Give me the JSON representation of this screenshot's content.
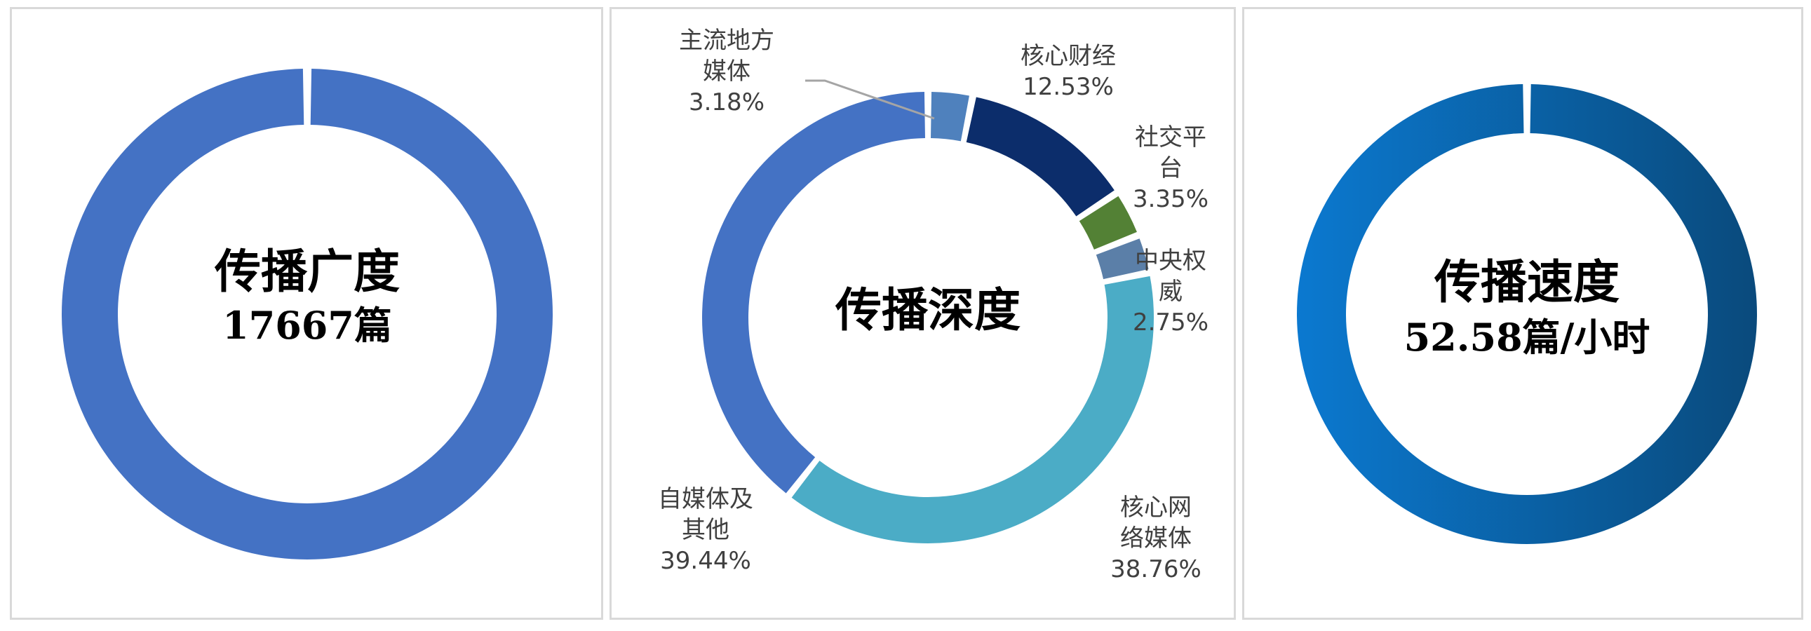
{
  "colors": {
    "breadth_ring": "#4472C4",
    "speed_ring_start": "#0b79d0",
    "speed_ring_end": "#0a4a7c",
    "panel_border": "#d9d9d9",
    "leader_line": "#a5a5a5"
  },
  "panels": [
    {
      "title": "传播广度",
      "value": "17667篇"
    },
    {
      "title": "传播深度"
    },
    {
      "title": "传播速度",
      "value": "52.58篇/小时"
    }
  ],
  "chart_data": [
    {
      "type": "pie",
      "variant": "donut",
      "title": "传播广度",
      "subtitle": "17667篇",
      "series": [
        {
          "name": "",
          "values": [
            100
          ]
        }
      ]
    },
    {
      "type": "pie",
      "variant": "donut",
      "title": "传播深度",
      "categories": [
        "主流地方媒体",
        "核心财经",
        "社交平台",
        "中央权威",
        "核心网络媒体",
        "自媒体及其他"
      ],
      "values": [
        3.18,
        12.53,
        3.35,
        2.75,
        38.76,
        39.44
      ],
      "data_labels": [
        "3.18%",
        "12.53%",
        "3.35%",
        "2.75%",
        "38.76%",
        "39.44%"
      ],
      "label_lines": [
        [
          "主流地方",
          "媒体",
          "3.18%"
        ],
        [
          "核心财经",
          "12.53%"
        ],
        [
          "社交平",
          "台",
          "3.35%"
        ],
        [
          "中央权",
          "威",
          "2.75%"
        ],
        [
          "核心网",
          "络媒体",
          "38.76%"
        ],
        [
          "自媒体及",
          "其他",
          "39.44%"
        ]
      ],
      "colors": [
        "#4f81bd",
        "#0c2d6b",
        "#538135",
        "#5b7fa8",
        "#4bacc6",
        "#4472c4"
      ]
    },
    {
      "type": "pie",
      "variant": "donut",
      "title": "传播速度",
      "subtitle": "52.58篇/小时",
      "series": [
        {
          "name": "",
          "values": [
            100
          ]
        }
      ]
    }
  ]
}
